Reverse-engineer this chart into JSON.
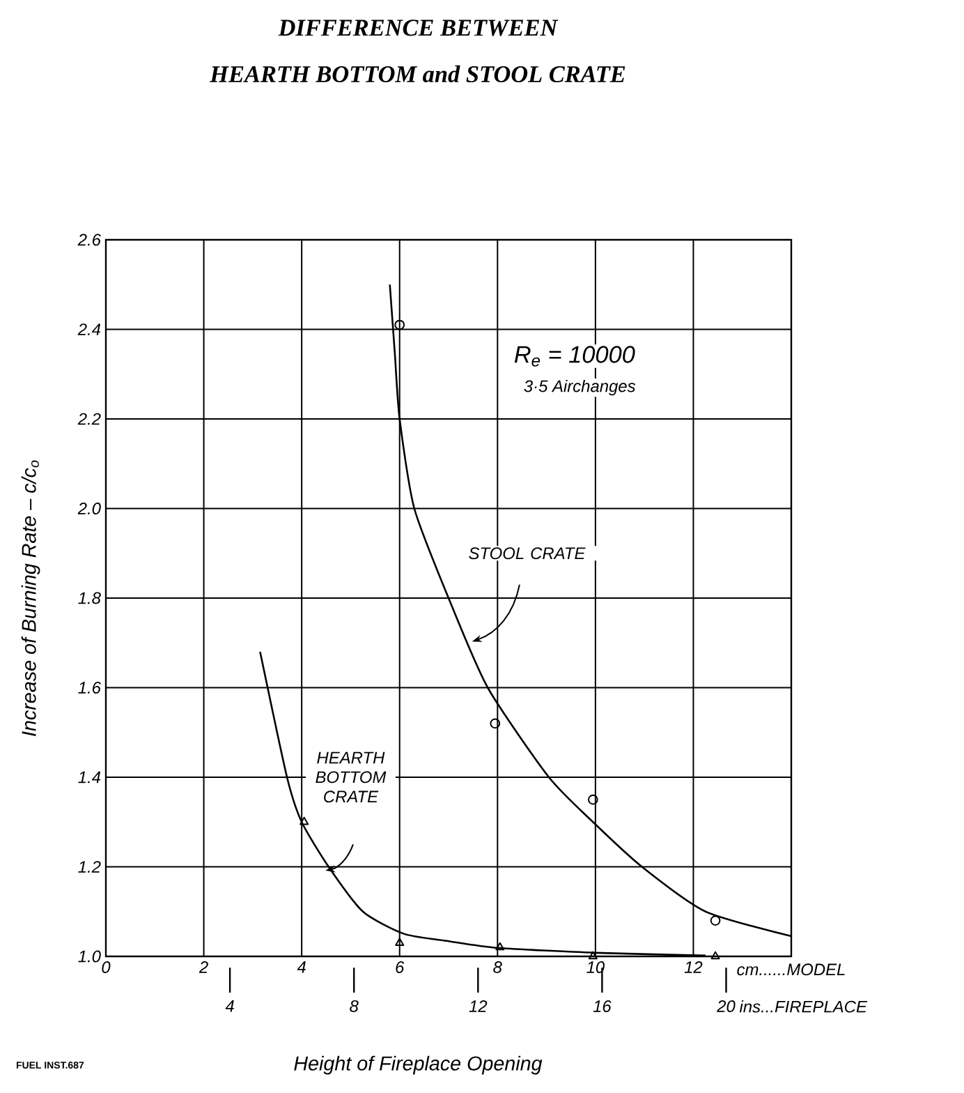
{
  "chart_data": {
    "type": "line",
    "title": "DIFFERENCE BETWEEN",
    "subtitle": "HEARTH BOTTOM *and* STOOL CRATE",
    "xlabel": "Height of Fireplace Opening",
    "ylabel": "Increase of Burning Rate – c/c$_{o}$",
    "x2label": "ins...FIREPLACE",
    "xlim": [
      0,
      14
    ],
    "xticks": [
      0,
      2,
      4,
      6,
      8,
      10,
      12
    ],
    "x2lim": [
      0,
      22.1
    ],
    "x2ticks": [
      4,
      8,
      12,
      16,
      20
    ],
    "ylim": [
      1.0,
      2.6
    ],
    "yticks": [
      {
        "value": 1.0,
        "label": "1.0"
      },
      1.2,
      1.4,
      1.6,
      1.8,
      {
        "value": 2.0,
        "label": "2.0"
      },
      2.2,
      2.4,
      2.6
    ],
    "grid": true,
    "series": [
      {
        "type": "scatter",
        "marker": "circle",
        "color": "#000000",
        "x": [
          6,
          7.95,
          9.95,
          12.45
        ],
        "values": [
          2.41,
          1.52,
          1.35,
          1.08
        ]
      },
      {
        "type": "line",
        "marker": "none",
        "line_style": "solid",
        "name": "STOOL CRATE",
        "color": "#000000",
        "x": [
          5.8,
          5.9,
          6.0,
          6.3,
          7.0,
          7.8,
          9.05,
          9.95,
          10.95,
          12.25,
          14
        ],
        "values": [
          2.5,
          2.35,
          2.2,
          2.0,
          1.8,
          1.6,
          1.4,
          1.3,
          1.2,
          1.1,
          1.045
        ]
      },
      {
        "type": "scatter",
        "marker": "triangle",
        "color": "#000000",
        "x": [
          4.05,
          6,
          8.05,
          9.95,
          12.45
        ],
        "values": [
          1.3,
          1.03,
          1.02,
          1.0,
          1.0
        ]
      },
      {
        "type": "line",
        "marker": "none",
        "line_style": "solid",
        "name": "HEARTH BOTTOM CRATE",
        "color": "#000000",
        "x": [
          3.15,
          3.7,
          4.0,
          4.55,
          5.25,
          6.1,
          7.0,
          8.0,
          10.0,
          12.25
        ],
        "values": [
          1.68,
          1.4,
          1.3,
          1.2,
          1.1,
          1.05,
          1.034,
          1.019,
          1.008,
          1.002
        ]
      }
    ],
    "annotations": [
      "R$_{e}$ = 10000",
      "3·5 Airchanges",
      "cm......MODEL",
      "FUEL INST.687"
    ]
  }
}
